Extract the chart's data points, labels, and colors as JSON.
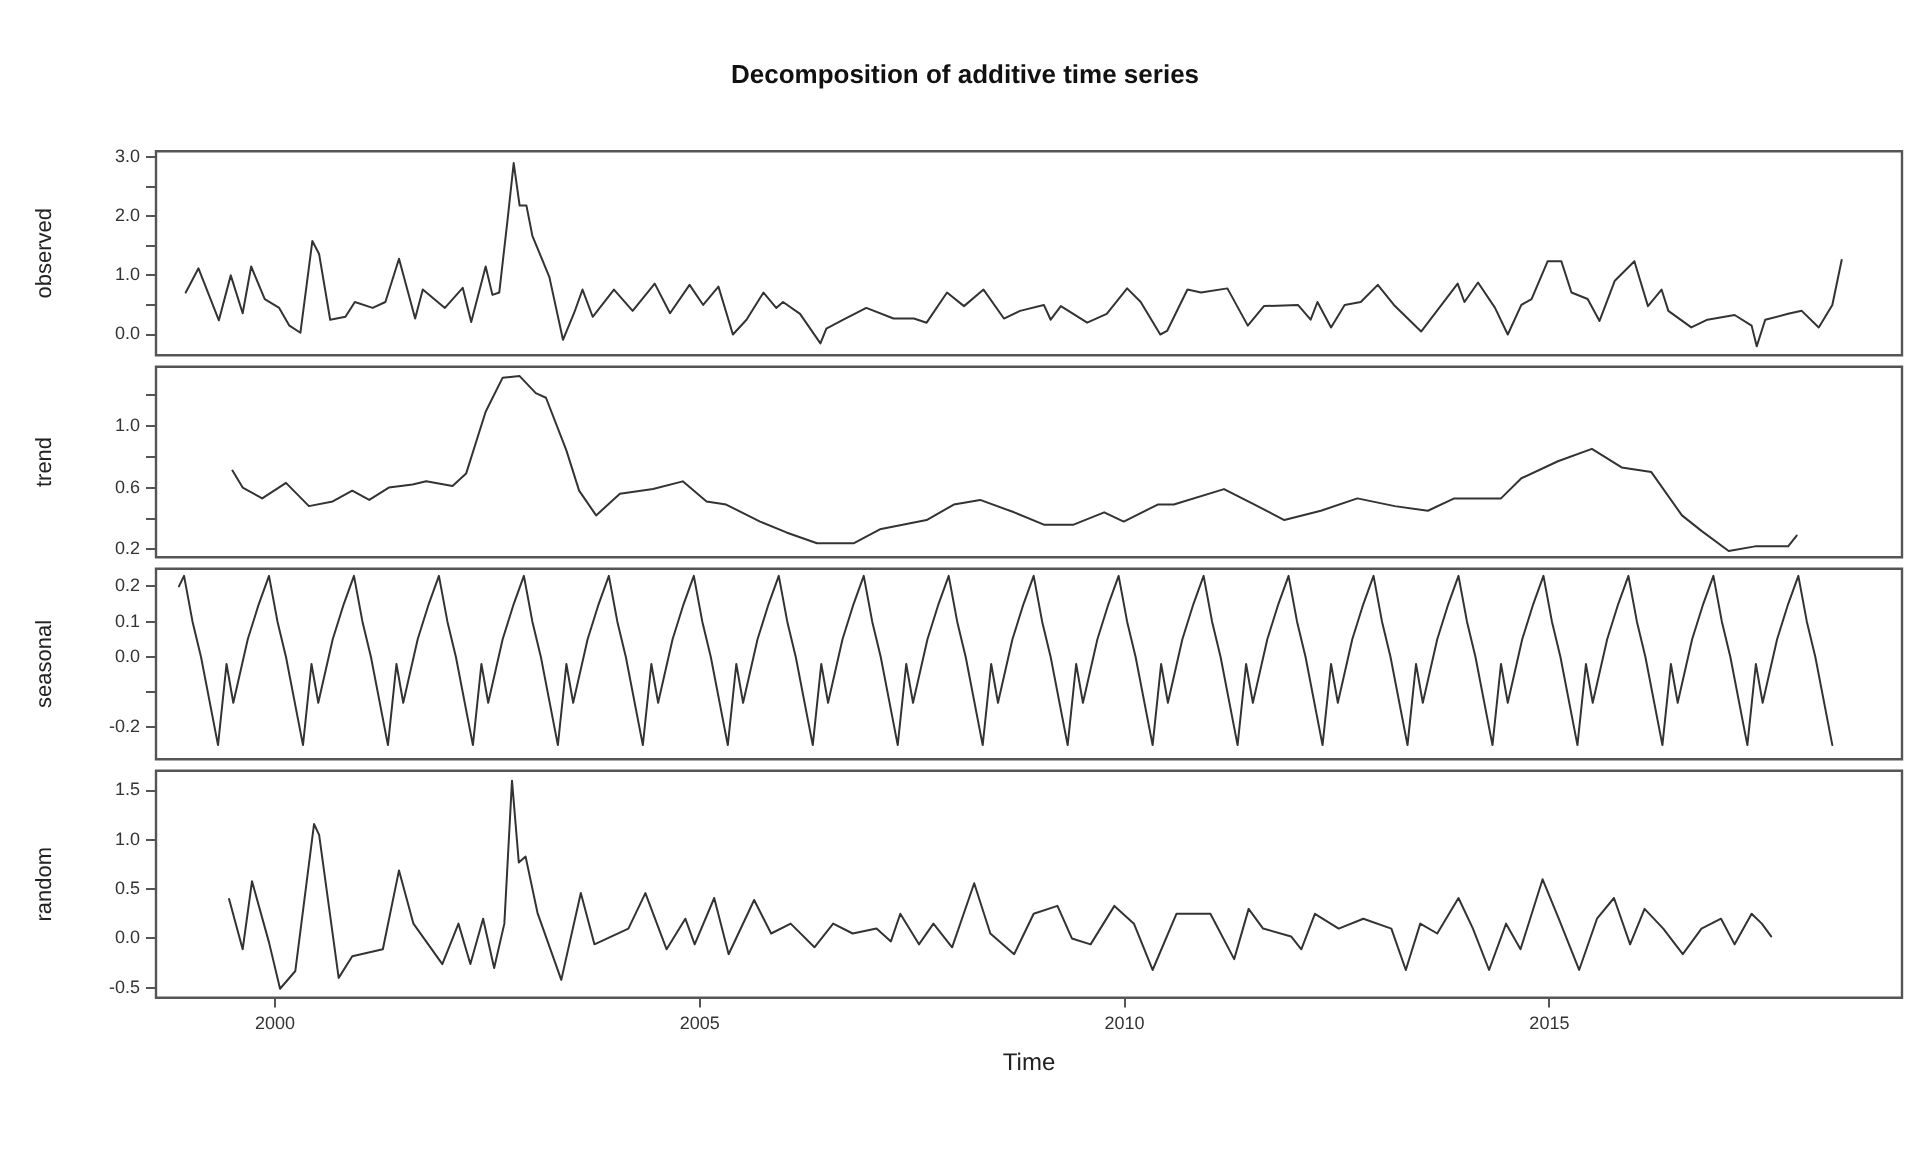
{
  "chart_data": [
    {
      "type": "line",
      "title": "Decomposition of additive time series",
      "ylabel": "observed",
      "tick_labels": "y",
      "xlim": [
        1998.6,
        2019.15
      ],
      "ylim": [
        -0.35,
        3.1
      ],
      "yticks": [
        {
          "value": 0,
          "label": "0.0"
        },
        {
          "value": 0.5,
          "label": null
        },
        {
          "value": 1,
          "label": "1.0"
        },
        {
          "value": 1.5,
          "label": null
        },
        {
          "value": 2,
          "label": "2.0"
        },
        {
          "value": 2.5,
          "label": null
        },
        {
          "value": 3,
          "label": "3.0"
        }
      ],
      "grid": false,
      "x": [
        1998.95,
        1999.1,
        1999.34,
        1999.48,
        1999.62,
        1999.72,
        1999.88,
        2000.05,
        2000.17,
        2000.3,
        2000.44,
        2000.52,
        2000.65,
        2000.83,
        2000.94,
        2001.15,
        2001.3,
        2001.46,
        2001.65,
        2001.74,
        2002.0,
        2002.21,
        2002.31,
        2002.48,
        2002.56,
        2002.64,
        2002.74,
        2002.81,
        2002.88,
        2002.96,
        2003.03,
        2003.23,
        2003.39,
        2003.52,
        2003.62,
        2003.74,
        2003.99,
        2004.21,
        2004.47,
        2004.65,
        2004.88,
        2005.04,
        2005.22,
        2005.39,
        2005.55,
        2005.75,
        2005.9,
        2005.98,
        2006.18,
        2006.42,
        2006.49,
        2006.69,
        2006.96,
        2007.28,
        2007.52,
        2007.67,
        2007.91,
        2008.11,
        2008.34,
        2008.58,
        2008.77,
        2009.05,
        2009.13,
        2009.25,
        2009.56,
        2009.79,
        2010.03,
        2010.19,
        2010.42,
        2010.5,
        2010.74,
        2010.9,
        2011.21,
        2011.45,
        2011.64,
        2012.04,
        2012.19,
        2012.27,
        2012.43,
        2012.59,
        2012.78,
        2012.98,
        2013.17,
        2013.49,
        2013.73,
        2013.92,
        2014.0,
        2014.16,
        2014.36,
        2014.51,
        2014.67,
        2014.79,
        2014.98,
        2015.14,
        2015.26,
        2015.45,
        2015.59,
        2015.77,
        2016.0,
        2016.16,
        2016.32,
        2016.4,
        2016.67,
        2016.86,
        2017.18,
        2017.38,
        2017.44,
        2017.54,
        2017.81,
        2017.97,
        2018.17,
        2018.33,
        2018.44
      ],
      "values": [
        0.71,
        1.12,
        0.24,
        1.0,
        0.36,
        1.15,
        0.6,
        0.45,
        0.15,
        0.03,
        1.58,
        1.36,
        0.25,
        0.3,
        0.55,
        0.45,
        0.55,
        1.28,
        0.27,
        0.76,
        0.45,
        0.79,
        0.21,
        1.15,
        0.67,
        0.71,
        1.97,
        2.9,
        2.18,
        2.18,
        1.67,
        0.97,
        -0.09,
        0.36,
        0.76,
        0.3,
        0.76,
        0.4,
        0.86,
        0.36,
        0.84,
        0.5,
        0.81,
        0.0,
        0.25,
        0.71,
        0.45,
        0.55,
        0.35,
        -0.15,
        0.1,
        0.25,
        0.45,
        0.27,
        0.27,
        0.2,
        0.71,
        0.48,
        0.76,
        0.27,
        0.4,
        0.5,
        0.25,
        0.48,
        0.2,
        0.35,
        0.78,
        0.55,
        0.0,
        0.06,
        0.76,
        0.71,
        0.78,
        0.15,
        0.48,
        0.5,
        0.25,
        0.55,
        0.12,
        0.5,
        0.55,
        0.84,
        0.5,
        0.05,
        0.5,
        0.86,
        0.55,
        0.88,
        0.45,
        0.0,
        0.5,
        0.6,
        1.24,
        1.24,
        0.71,
        0.6,
        0.23,
        0.91,
        1.24,
        0.48,
        0.76,
        0.4,
        0.12,
        0.25,
        0.33,
        0.15,
        -0.2,
        0.25,
        0.35,
        0.4,
        0.12,
        0.5,
        1.26
      ],
      "color": "#333333"
    },
    {
      "type": "line",
      "ylabel": "trend",
      "tick_labels": "y",
      "xlim": [
        1998.6,
        2019.15
      ],
      "ylim": [
        0.15,
        1.38
      ],
      "yticks": [
        0.2,
        {
          "value": 0.4,
          "label": null
        },
        0.6,
        {
          "value": 0.8,
          "label": null
        },
        {
          "value": 1,
          "label": "1.0"
        },
        {
          "value": 1.2,
          "label": null
        }
      ],
      "grid": false,
      "x": [
        1999.5,
        1999.62,
        1999.85,
        2000.13,
        2000.4,
        2000.68,
        2000.91,
        2001.11,
        2001.34,
        2001.62,
        2001.78,
        2002.09,
        2002.25,
        2002.48,
        2002.68,
        2002.88,
        2003.07,
        2003.19,
        2003.43,
        2003.58,
        2003.78,
        2004.06,
        2004.45,
        2004.8,
        2005.08,
        2005.31,
        2005.71,
        2006.02,
        2006.38,
        2006.81,
        2007.12,
        2007.67,
        2007.99,
        2008.3,
        2008.7,
        2009.05,
        2009.4,
        2009.76,
        2009.99,
        2010.39,
        2010.58,
        2011.17,
        2011.53,
        2011.88,
        2012.31,
        2012.74,
        2013.18,
        2013.57,
        2013.88,
        2014.43,
        2014.67,
        2015.1,
        2015.5,
        2015.85,
        2016.2,
        2016.56,
        2016.79,
        2017.11,
        2017.42,
        2017.81,
        2017.91
      ],
      "values": [
        0.71,
        0.6,
        0.53,
        0.63,
        0.48,
        0.51,
        0.58,
        0.52,
        0.6,
        0.62,
        0.64,
        0.61,
        0.69,
        1.09,
        1.31,
        1.32,
        1.21,
        1.18,
        0.84,
        0.58,
        0.42,
        0.56,
        0.59,
        0.64,
        0.51,
        0.49,
        0.38,
        0.31,
        0.24,
        0.24,
        0.33,
        0.39,
        0.49,
        0.52,
        0.44,
        0.36,
        0.36,
        0.44,
        0.38,
        0.49,
        0.49,
        0.59,
        0.49,
        0.39,
        0.45,
        0.53,
        0.48,
        0.45,
        0.53,
        0.53,
        0.66,
        0.77,
        0.85,
        0.73,
        0.7,
        0.42,
        0.32,
        0.19,
        0.22,
        0.22,
        0.29
      ],
      "color": "#333333"
    },
    {
      "type": "line",
      "ylabel": "seasonal",
      "tick_labels": "y",
      "xlim": [
        1998.6,
        2019.15
      ],
      "ylim": [
        -0.29,
        0.25
      ],
      "yticks": [
        -0.2,
        {
          "value": -0.1,
          "label": null
        },
        {
          "value": 0,
          "label": "0.0"
        },
        0.1,
        0.2
      ],
      "grid": false,
      "x": [
        1998.87,
        1998.93,
        1999.03,
        1999.13,
        1999.33,
        1999.43,
        1999.51,
        1999.68,
        1999.81,
        1999.93,
        2000.03,
        2000.13,
        2000.33,
        2000.43,
        2000.51,
        2000.68,
        2000.81,
        2000.93,
        2001.03,
        2001.13,
        2001.33,
        2001.43,
        2001.51,
        2001.68,
        2001.81,
        2001.93,
        2002.03,
        2002.13,
        2002.33,
        2002.43,
        2002.51,
        2002.68,
        2002.81,
        2002.93,
        2003.03,
        2003.13,
        2003.33,
        2003.43,
        2003.51,
        2003.68,
        2003.81,
        2003.93,
        2004.03,
        2004.13,
        2004.33,
        2004.43,
        2004.51,
        2004.68,
        2004.81,
        2004.93,
        2005.03,
        2005.13,
        2005.33,
        2005.43,
        2005.51,
        2005.68,
        2005.81,
        2005.93,
        2006.03,
        2006.13,
        2006.33,
        2006.43,
        2006.51,
        2006.68,
        2006.81,
        2006.93,
        2007.03,
        2007.13,
        2007.33,
        2007.43,
        2007.51,
        2007.68,
        2007.81,
        2007.93,
        2008.03,
        2008.13,
        2008.33,
        2008.43,
        2008.51,
        2008.68,
        2008.81,
        2008.93,
        2009.03,
        2009.13,
        2009.33,
        2009.43,
        2009.51,
        2009.68,
        2009.81,
        2009.93,
        2010.03,
        2010.13,
        2010.33,
        2010.43,
        2010.51,
        2010.68,
        2010.81,
        2010.93,
        2011.03,
        2011.13,
        2011.33,
        2011.43,
        2011.51,
        2011.68,
        2011.81,
        2011.93,
        2012.03,
        2012.13,
        2012.33,
        2012.43,
        2012.51,
        2012.68,
        2012.81,
        2012.93,
        2013.03,
        2013.13,
        2013.33,
        2013.43,
        2013.51,
        2013.68,
        2013.81,
        2013.93,
        2014.03,
        2014.13,
        2014.33,
        2014.43,
        2014.51,
        2014.68,
        2014.81,
        2014.93,
        2015.03,
        2015.13,
        2015.33,
        2015.43,
        2015.51,
        2015.68,
        2015.81,
        2015.93,
        2016.03,
        2016.13,
        2016.33,
        2016.43,
        2016.51,
        2016.68,
        2016.81,
        2016.93,
        2017.03,
        2017.13,
        2017.33,
        2017.43,
        2017.51,
        2017.68,
        2017.81,
        2017.93,
        2018.03,
        2018.13,
        2018.33
      ],
      "values": [
        0.2,
        0.23,
        0.1,
        0.0,
        -0.25,
        -0.02,
        -0.13,
        0.05,
        0.15,
        0.23,
        0.1,
        0.0,
        -0.25,
        -0.02,
        -0.13,
        0.05,
        0.15,
        0.23,
        0.1,
        0.0,
        -0.25,
        -0.02,
        -0.13,
        0.05,
        0.15,
        0.23,
        0.1,
        0.0,
        -0.25,
        -0.02,
        -0.13,
        0.05,
        0.15,
        0.23,
        0.1,
        0.0,
        -0.25,
        -0.02,
        -0.13,
        0.05,
        0.15,
        0.23,
        0.1,
        0.0,
        -0.25,
        -0.02,
        -0.13,
        0.05,
        0.15,
        0.23,
        0.1,
        0.0,
        -0.25,
        -0.02,
        -0.13,
        0.05,
        0.15,
        0.23,
        0.1,
        0.0,
        -0.25,
        -0.02,
        -0.13,
        0.05,
        0.15,
        0.23,
        0.1,
        0.0,
        -0.25,
        -0.02,
        -0.13,
        0.05,
        0.15,
        0.23,
        0.1,
        0.0,
        -0.25,
        -0.02,
        -0.13,
        0.05,
        0.15,
        0.23,
        0.1,
        0.0,
        -0.25,
        -0.02,
        -0.13,
        0.05,
        0.15,
        0.23,
        0.1,
        0.0,
        -0.25,
        -0.02,
        -0.13,
        0.05,
        0.15,
        0.23,
        0.1,
        0.0,
        -0.25,
        -0.02,
        -0.13,
        0.05,
        0.15,
        0.23,
        0.1,
        0.0,
        -0.25,
        -0.02,
        -0.13,
        0.05,
        0.15,
        0.23,
        0.1,
        0.0,
        -0.25,
        -0.02,
        -0.13,
        0.05,
        0.15,
        0.23,
        0.1,
        0.0,
        -0.25,
        -0.02,
        -0.13,
        0.05,
        0.15,
        0.23,
        0.1,
        0.0,
        -0.25,
        -0.02,
        -0.13,
        0.05,
        0.15,
        0.23,
        0.1,
        0.0,
        -0.25,
        -0.02,
        -0.13,
        0.05,
        0.15,
        0.23,
        0.1,
        0.0,
        -0.25,
        -0.02,
        -0.13,
        0.05,
        0.15,
        0.23,
        0.1,
        0.0,
        -0.25
      ],
      "color": "#333333"
    },
    {
      "type": "line",
      "ylabel": "random",
      "xlabel": "Time",
      "xlim": [
        1998.6,
        2019.15
      ],
      "xticks": [
        2000,
        2005,
        2010,
        2015
      ],
      "ylim": [
        -0.6,
        1.7
      ],
      "yticks": [
        -0.5,
        {
          "value": 0,
          "label": "0.0"
        },
        0.5,
        {
          "value": 1,
          "label": "1.0"
        },
        1.5
      ],
      "grid": false,
      "x": [
        1999.46,
        1999.62,
        1999.73,
        1999.93,
        2000.06,
        2000.24,
        2000.46,
        2000.52,
        2000.75,
        2000.91,
        2001.27,
        2001.46,
        2001.63,
        2001.97,
        2002.16,
        2002.3,
        2002.45,
        2002.58,
        2002.7,
        2002.79,
        2002.87,
        2002.95,
        2003.09,
        2003.37,
        2003.6,
        2003.76,
        2004.16,
        2004.36,
        2004.61,
        2004.83,
        2004.94,
        2005.17,
        2005.34,
        2005.64,
        2005.84,
        2006.07,
        2006.35,
        2006.57,
        2006.8,
        2007.08,
        2007.25,
        2007.36,
        2007.58,
        2007.75,
        2007.97,
        2008.23,
        2008.42,
        2008.7,
        2008.93,
        2009.21,
        2009.38,
        2009.6,
        2009.88,
        2010.11,
        2010.33,
        2010.61,
        2011.01,
        2011.29,
        2011.46,
        2011.63,
        2011.96,
        2012.08,
        2012.24,
        2012.52,
        2012.81,
        2013.14,
        2013.31,
        2013.48,
        2013.68,
        2013.93,
        2014.1,
        2014.29,
        2014.49,
        2014.66,
        2014.92,
        2015.11,
        2015.35,
        2015.56,
        2015.76,
        2015.95,
        2016.12,
        2016.34,
        2016.57,
        2016.79,
        2017.02,
        2017.18,
        2017.38,
        2017.5,
        2017.61
      ],
      "values": [
        0.4,
        -0.11,
        0.58,
        -0.04,
        -0.51,
        -0.33,
        1.16,
        1.05,
        -0.4,
        -0.18,
        -0.11,
        0.69,
        0.15,
        -0.26,
        0.15,
        -0.26,
        0.2,
        -0.3,
        0.15,
        1.6,
        0.77,
        0.83,
        0.26,
        -0.42,
        0.46,
        -0.06,
        0.1,
        0.46,
        -0.11,
        0.2,
        -0.06,
        0.41,
        -0.16,
        0.39,
        0.05,
        0.15,
        -0.09,
        0.15,
        0.05,
        0.1,
        -0.03,
        0.25,
        -0.06,
        0.15,
        -0.09,
        0.56,
        0.05,
        -0.16,
        0.25,
        0.33,
        0.0,
        -0.06,
        0.33,
        0.15,
        -0.32,
        0.25,
        0.25,
        -0.21,
        0.3,
        0.1,
        0.02,
        -0.11,
        0.25,
        0.1,
        0.2,
        0.1,
        -0.32,
        0.15,
        0.05,
        0.41,
        0.1,
        -0.32,
        0.15,
        -0.11,
        0.6,
        0.2,
        -0.32,
        0.2,
        0.41,
        -0.06,
        0.3,
        0.1,
        -0.16,
        0.1,
        0.2,
        -0.06,
        0.25,
        0.15,
        0.02
      ],
      "color": "#333333"
    }
  ]
}
